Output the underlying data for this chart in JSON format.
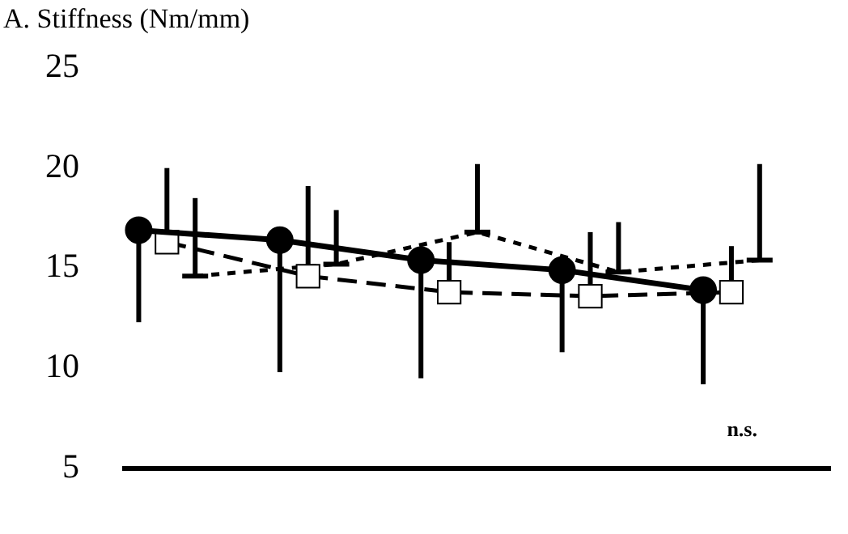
{
  "chart_data": {
    "type": "line",
    "title": "A. Stiffness (Nm/mm)",
    "categories": [
      null,
      null,
      null,
      null,
      null,
      null,
      null,
      null,
      null,
      null,
      null,
      null,
      null,
      null,
      null,
      null,
      null,
      null,
      null,
      null,
      null,
      null,
      null,
      null,
      null
    ],
    "ylim": [
      5,
      25
    ],
    "yticks": [
      5,
      10,
      15,
      20,
      25
    ],
    "tick_labels": "y",
    "grid": false,
    "legend": false,
    "annotations": [
      "n.s."
    ],
    "series": [
      {
        "color": "#000000",
        "marker": "circle",
        "line_style": "solid",
        "values": [
          16.9,
          null,
          null,
          null,
          null,
          16.4,
          null,
          null,
          null,
          null,
          15.4,
          null,
          null,
          null,
          null,
          14.9,
          null,
          null,
          null,
          null,
          13.9,
          null,
          null,
          null,
          null
        ],
        "errors": [
          [
            12.3,
            16.9
          ],
          null,
          null,
          null,
          null,
          [
            9.8,
            16.4
          ],
          null,
          null,
          null,
          null,
          [
            9.5,
            15.4
          ],
          null,
          null,
          null,
          null,
          [
            10.8,
            14.9
          ],
          null,
          null,
          null,
          null,
          [
            9.2,
            13.9
          ],
          null,
          null,
          null,
          null
        ]
      },
      {
        "color": "#000000",
        "marker": "square",
        "line_style": "dashed",
        "values": [
          null,
          16.3,
          null,
          null,
          null,
          null,
          14.6,
          null,
          null,
          null,
          null,
          13.8,
          null,
          null,
          null,
          null,
          13.6,
          null,
          null,
          null,
          null,
          13.8,
          null,
          null,
          null
        ],
        "errors": [
          null,
          [
            16.3,
            20.0
          ],
          null,
          null,
          null,
          null,
          [
            14.6,
            19.1
          ],
          null,
          null,
          null,
          null,
          [
            13.8,
            16.3
          ],
          null,
          null,
          null,
          null,
          [
            13.6,
            16.8
          ],
          null,
          null,
          null,
          null,
          [
            13.8,
            16.1
          ],
          null,
          null,
          null
        ]
      },
      {
        "color": "#000000",
        "marker": "none",
        "line_style": "dotted",
        "values": [
          null,
          null,
          14.6,
          null,
          null,
          null,
          null,
          15.2,
          null,
          null,
          null,
          null,
          16.8,
          null,
          null,
          null,
          null,
          14.8,
          null,
          null,
          null,
          null,
          15.4,
          null,
          null
        ],
        "errors": [
          null,
          null,
          [
            14.6,
            18.5
          ],
          null,
          null,
          null,
          null,
          [
            15.2,
            17.9
          ],
          null,
          null,
          null,
          null,
          [
            16.8,
            20.2
          ],
          null,
          null,
          null,
          null,
          [
            14.8,
            17.3
          ],
          null,
          null,
          null,
          null,
          [
            15.4,
            20.2
          ],
          null,
          null
        ]
      }
    ]
  }
}
